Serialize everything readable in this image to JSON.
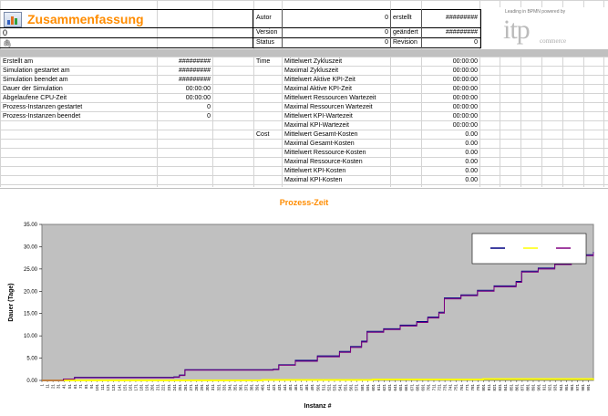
{
  "sheet": {
    "title": "Zusammenfassung",
    "name_value": "0",
    "meta": {
      "autor_label": "Autor",
      "autor_value": "0",
      "version_label": "Version",
      "version_value": "0",
      "status_label": "Status",
      "status_value": "0",
      "erstellt_label": "erstellt",
      "erstellt_value": "#########",
      "geaendert_label": "geändert",
      "geaendert_value": "#########",
      "revision_label": "Revision",
      "revision_value": "0"
    },
    "logo": {
      "small": "Leading in BPMN   powered by",
      "main": "itp",
      "sub": "commerce"
    }
  },
  "summary": [
    {
      "label": "Erstellt am",
      "value": "#########"
    },
    {
      "label": "Simulation gestartet am",
      "value": "#########"
    },
    {
      "label": "Simulation beendet am",
      "value": "#########"
    },
    {
      "label": "Dauer der Simulation",
      "value": "00:00:00"
    },
    {
      "label": "Abgelaufene CPU-Zeit",
      "value": "00:00:00"
    },
    {
      "label": "Prozess-Instanzen gestartet",
      "value": "0"
    },
    {
      "label": "Prozess-Instanzen beendet",
      "value": "0"
    }
  ],
  "time_label": "Time",
  "cost_label": "Cost",
  "metrics": [
    {
      "label": "Mittelwert Zykluszeit",
      "value": "00:00:00"
    },
    {
      "label": "Maximal Zykluszeit",
      "value": "00:00:00"
    },
    {
      "label": "Mittelwert Aktive KPI-Zeit",
      "value": "00:00:00"
    },
    {
      "label": "Maximal Aktive KPI-Zeit",
      "value": "00:00:00"
    },
    {
      "label": "Mittelwert Ressourcen Wartezeit",
      "value": "00:00:00"
    },
    {
      "label": "Maximal Ressourcen Wartezeit",
      "value": "00:00:00"
    },
    {
      "label": "Mittelwert KPI-Wartezeit",
      "value": "00:00:00"
    },
    {
      "label": "Maximal KPI-Wartezeit",
      "value": "00:00:00"
    },
    {
      "label": "Mittelwert Gesamt-Kosten",
      "value": "0.00"
    },
    {
      "label": "Maximal Gesamt-Kosten",
      "value": "0.00"
    },
    {
      "label": "Mittelwert Ressource-Kosten",
      "value": "0.00"
    },
    {
      "label": "Maximal Ressource-Kosten",
      "value": "0.00"
    },
    {
      "label": "Mittelwert KPI-Kosten",
      "value": "0.00"
    },
    {
      "label": "Maximal KPI-Kosten",
      "value": "0.00"
    }
  ],
  "chart_data": {
    "type": "line",
    "title": "Prozess-Zeit",
    "xlabel": "Instanz #",
    "ylabel": "Dauer (Tage)",
    "ylim": [
      0,
      35
    ],
    "yticks": [
      "0.00",
      "5.00",
      "10.00",
      "15.00",
      "20.00",
      "25.00",
      "30.00",
      "35.00"
    ],
    "xlim": [
      1,
      1000
    ],
    "xtick_start": 1,
    "xtick_step": 10,
    "legend": "top-right",
    "grid": false,
    "plot_bg": "#c0c0c0",
    "colors": {
      "navy": "#000080",
      "yellow": "#ffff00",
      "purple": "#800080"
    },
    "series": [
      {
        "color": "navy",
        "points": [
          [
            1,
            0
          ],
          [
            20,
            0
          ],
          [
            40,
            0.3
          ],
          [
            60,
            0.7
          ],
          [
            240,
            0.8
          ],
          [
            250,
            1.2
          ],
          [
            260,
            2.4
          ],
          [
            420,
            2.5
          ],
          [
            430,
            3.5
          ],
          [
            460,
            4.5
          ],
          [
            500,
            5.5
          ],
          [
            540,
            6.5
          ],
          [
            560,
            7.6
          ],
          [
            580,
            8.8
          ],
          [
            590,
            11
          ],
          [
            620,
            11.6
          ],
          [
            650,
            12.4
          ],
          [
            680,
            13.2
          ],
          [
            700,
            14.2
          ],
          [
            720,
            15.3
          ],
          [
            730,
            18.5
          ],
          [
            760,
            19.2
          ],
          [
            790,
            20.2
          ],
          [
            820,
            21.2
          ],
          [
            860,
            22.2
          ],
          [
            870,
            24.5
          ],
          [
            900,
            25.2
          ],
          [
            930,
            26.2
          ],
          [
            960,
            27.4
          ],
          [
            980,
            28.2
          ],
          [
            1000,
            28.8
          ]
        ]
      },
      {
        "color": "yellow",
        "points": [
          [
            1,
            0
          ],
          [
            300,
            0
          ],
          [
            400,
            0.1
          ],
          [
            600,
            0.2
          ],
          [
            800,
            0.3
          ],
          [
            1000,
            0.4
          ]
        ]
      },
      {
        "color": "purple",
        "points": [
          [
            1,
            0
          ],
          [
            20,
            0
          ],
          [
            40,
            0.3
          ],
          [
            60,
            0.6
          ],
          [
            240,
            0.7
          ],
          [
            250,
            1.1
          ],
          [
            260,
            2.3
          ],
          [
            420,
            2.4
          ],
          [
            430,
            3.4
          ],
          [
            460,
            4.3
          ],
          [
            500,
            5.3
          ],
          [
            540,
            6.3
          ],
          [
            560,
            7.4
          ],
          [
            580,
            8.6
          ],
          [
            590,
            10.8
          ],
          [
            620,
            11.4
          ],
          [
            650,
            12.2
          ],
          [
            680,
            13.0
          ],
          [
            700,
            14.0
          ],
          [
            720,
            15.1
          ],
          [
            730,
            18.3
          ],
          [
            760,
            19.0
          ],
          [
            790,
            20.0
          ],
          [
            820,
            21.0
          ],
          [
            860,
            22.0
          ],
          [
            870,
            24.3
          ],
          [
            900,
            25.0
          ],
          [
            930,
            26.0
          ],
          [
            960,
            27.2
          ],
          [
            980,
            28.0
          ],
          [
            1000,
            28.6
          ]
        ]
      }
    ]
  }
}
